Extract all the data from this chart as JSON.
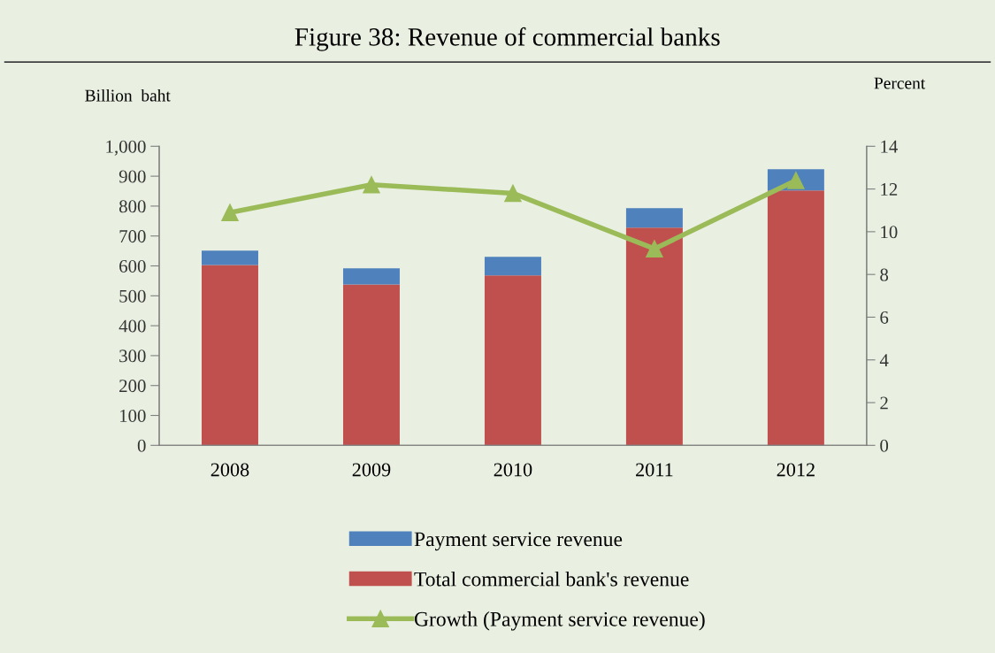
{
  "chart_data": {
    "type": "bar",
    "title": "Figure 38: Revenue of commercial banks",
    "ylabel": "Billion  baht",
    "y2label": "Percent",
    "categories": [
      "2008",
      "2009",
      "2010",
      "2011",
      "2012"
    ],
    "stacked": true,
    "series": [
      {
        "name": "Total commercial bank's revenue",
        "color": "#c0504d",
        "values": [
          603,
          538,
          568,
          728,
          852
        ]
      },
      {
        "name": "Payment service revenue",
        "color": "#4f81bd",
        "values": [
          48,
          54,
          62,
          65,
          71
        ]
      },
      {
        "name": "Growth (Payment service revenue)",
        "type": "line",
        "axis": "y2",
        "color": "#9bbb59",
        "marker": "triangle",
        "values": [
          10.9,
          12.2,
          11.8,
          9.2,
          12.4
        ]
      }
    ],
    "ylim": [
      0,
      1000
    ],
    "yticks": [
      0,
      100,
      200,
      300,
      400,
      500,
      600,
      700,
      800,
      900,
      {
        "value": 1000,
        "label": "1,000"
      }
    ],
    "y2lim": [
      0,
      14
    ],
    "y2ticks": [
      0,
      2,
      4,
      6,
      8,
      10,
      12,
      14
    ],
    "grid": false,
    "legend": "bottom"
  }
}
